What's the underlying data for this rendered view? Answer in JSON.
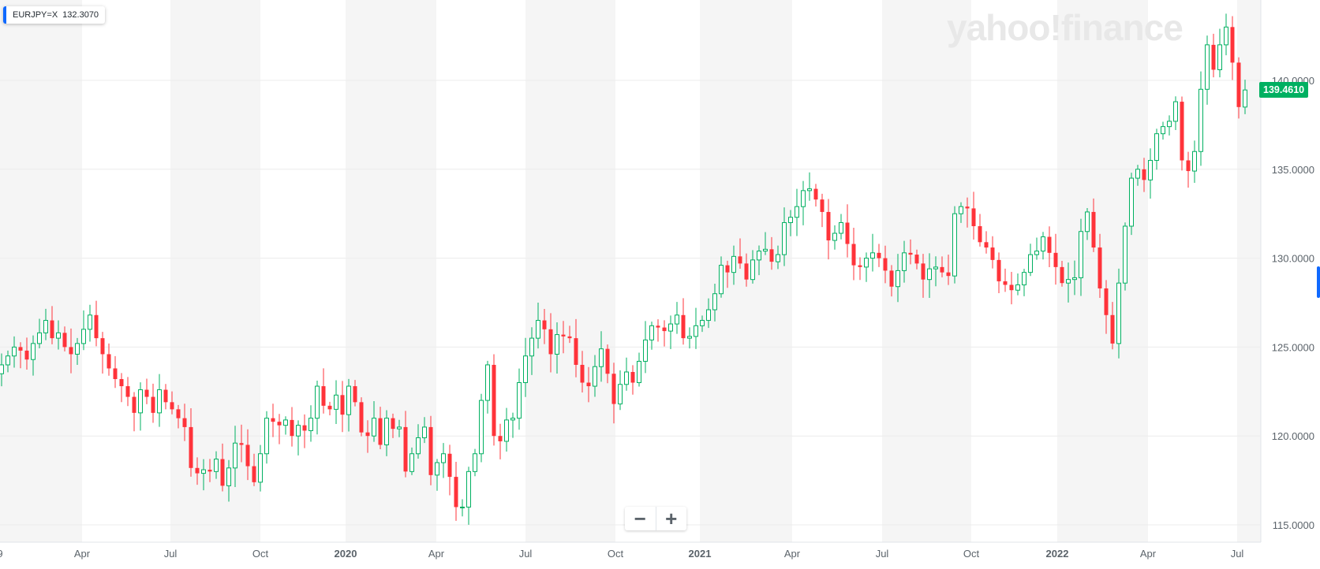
{
  "tooltip": {
    "symbol": "EURJPY=X",
    "value": "132.3070"
  },
  "watermark": "yahoo!finance",
  "current_price": "139.4610",
  "zoom": {
    "minus": "−",
    "plus": "+"
  },
  "colors": {
    "up": "#00b061",
    "down": "#ff333a",
    "band": "#f5f5f5",
    "grid": "#ececec",
    "text": "#5b636a"
  },
  "chart_data": {
    "type": "candlestick",
    "symbol": "EURJPY=X",
    "interval": "weekly",
    "ylim": [
      114,
      145
    ],
    "y_ticks": [
      "115.0000",
      "120.0000",
      "125.0000",
      "130.0000",
      "135.0000",
      "140.0000"
    ],
    "x_ticks": [
      {
        "label": "9",
        "bold": false
      },
      {
        "label": "Apr",
        "bold": false
      },
      {
        "label": "Jul",
        "bold": false
      },
      {
        "label": "Oct",
        "bold": false
      },
      {
        "label": "2020",
        "bold": true
      },
      {
        "label": "Apr",
        "bold": false
      },
      {
        "label": "Jul",
        "bold": false
      },
      {
        "label": "Oct",
        "bold": false
      },
      {
        "label": "2021",
        "bold": true
      },
      {
        "label": "Apr",
        "bold": false
      },
      {
        "label": "Jul",
        "bold": false
      },
      {
        "label": "Oct",
        "bold": false
      },
      {
        "label": "2022",
        "bold": true
      },
      {
        "label": "Apr",
        "bold": false
      },
      {
        "label": "Jul",
        "bold": false
      }
    ],
    "closes": [
      124.0,
      124.5,
      125.0,
      124.8,
      124.3,
      125.2,
      125.8,
      126.5,
      125.5,
      125.8,
      125.0,
      124.6,
      125.2,
      126.0,
      126.8,
      125.5,
      124.6,
      123.8,
      123.2,
      122.8,
      122.2,
      121.3,
      122.6,
      122.2,
      121.3,
      122.6,
      121.9,
      121.5,
      121.0,
      120.5,
      118.2,
      117.9,
      118.1,
      118.0,
      118.7,
      117.2,
      118.2,
      119.6,
      119.5,
      118.3,
      117.4,
      119.0,
      121.0,
      120.8,
      120.6,
      120.9,
      120.0,
      120.6,
      120.3,
      121.0,
      122.8,
      121.7,
      121.5,
      122.3,
      121.2,
      122.8,
      121.9,
      120.2,
      120.0,
      121.0,
      119.5,
      121.0,
      120.4,
      120.5,
      118.0,
      119.0,
      119.9,
      120.5,
      117.8,
      118.5,
      119.0,
      117.7,
      116.0,
      116.0,
      118.0,
      119.0,
      122.0,
      124.0,
      120.0,
      119.7,
      120.9,
      121.0,
      123.0,
      124.5,
      125.5,
      126.5,
      126.0,
      124.6,
      125.7,
      125.6,
      125.5,
      124.0,
      123.0,
      122.8,
      123.9,
      124.9,
      123.5,
      121.8,
      122.9,
      123.6,
      123.0,
      124.2,
      125.4,
      126.2,
      126.1,
      125.9,
      126.3,
      126.8,
      125.5,
      125.6,
      126.2,
      126.5,
      127.1,
      128.0,
      129.6,
      129.2,
      130.1,
      129.7,
      128.8,
      129.9,
      130.4,
      130.5,
      129.8,
      130.2,
      132.0,
      132.3,
      132.9,
      133.8,
      133.9,
      133.3,
      132.6,
      131.0,
      131.4,
      132.0,
      130.8,
      129.6,
      129.5,
      130.0,
      130.3,
      130.0,
      129.3,
      128.4,
      129.3,
      130.3,
      130.2,
      129.7,
      128.8,
      129.4,
      129.5,
      129.2,
      129.0,
      132.5,
      132.9,
      132.8,
      131.8,
      130.9,
      130.6,
      129.9,
      128.7,
      128.5,
      128.2,
      128.5,
      129.2,
      130.2,
      130.4,
      131.2,
      130.3,
      129.5,
      128.6,
      128.8,
      128.9,
      131.5,
      132.6,
      130.6,
      128.3,
      126.8,
      125.2,
      128.6,
      131.8,
      134.5,
      135.0,
      134.4,
      135.5,
      137.0,
      137.4,
      137.7,
      138.8,
      135.5,
      134.9,
      136.0,
      139.5,
      142.0,
      140.6,
      142.0,
      143.0,
      141.0,
      138.5,
      139.46
    ]
  }
}
